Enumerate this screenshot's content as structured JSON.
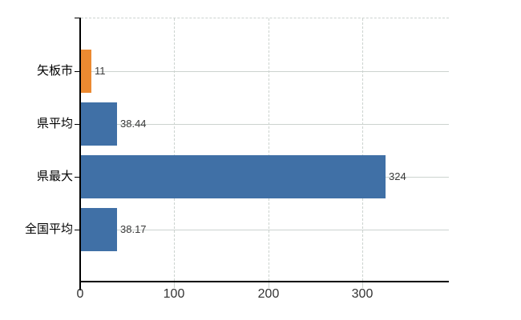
{
  "chart_data": {
    "type": "bar",
    "orientation": "horizontal",
    "title": "",
    "categories": [
      "矢板市",
      "県平均",
      "県最大",
      "全国平均"
    ],
    "values": [
      11,
      38.44,
      324,
      38.17
    ],
    "value_labels": [
      "11",
      "38.44",
      "324",
      "38.17"
    ],
    "bar_colors": [
      "#ec8a31",
      "#4070a6",
      "#4070a6",
      "#4070a6"
    ],
    "x_ticks": [
      0,
      100,
      200,
      300
    ],
    "x_tick_labels": [
      "0",
      "100",
      "200",
      "300"
    ],
    "xlim": [
      0,
      392
    ],
    "grid": {
      "vertical": "dashed",
      "horizontal": "solid",
      "top_border": "dashed"
    },
    "legend": "none",
    "colors": {
      "background": "#ffffff",
      "axis": "#000000",
      "grid": "#ccd3cf",
      "bar_highlight": "#ec8a31",
      "bar_default": "#4070a6",
      "value_label": "#3a3a3a",
      "tick_label": "#333333",
      "category_label": "#000000"
    }
  }
}
